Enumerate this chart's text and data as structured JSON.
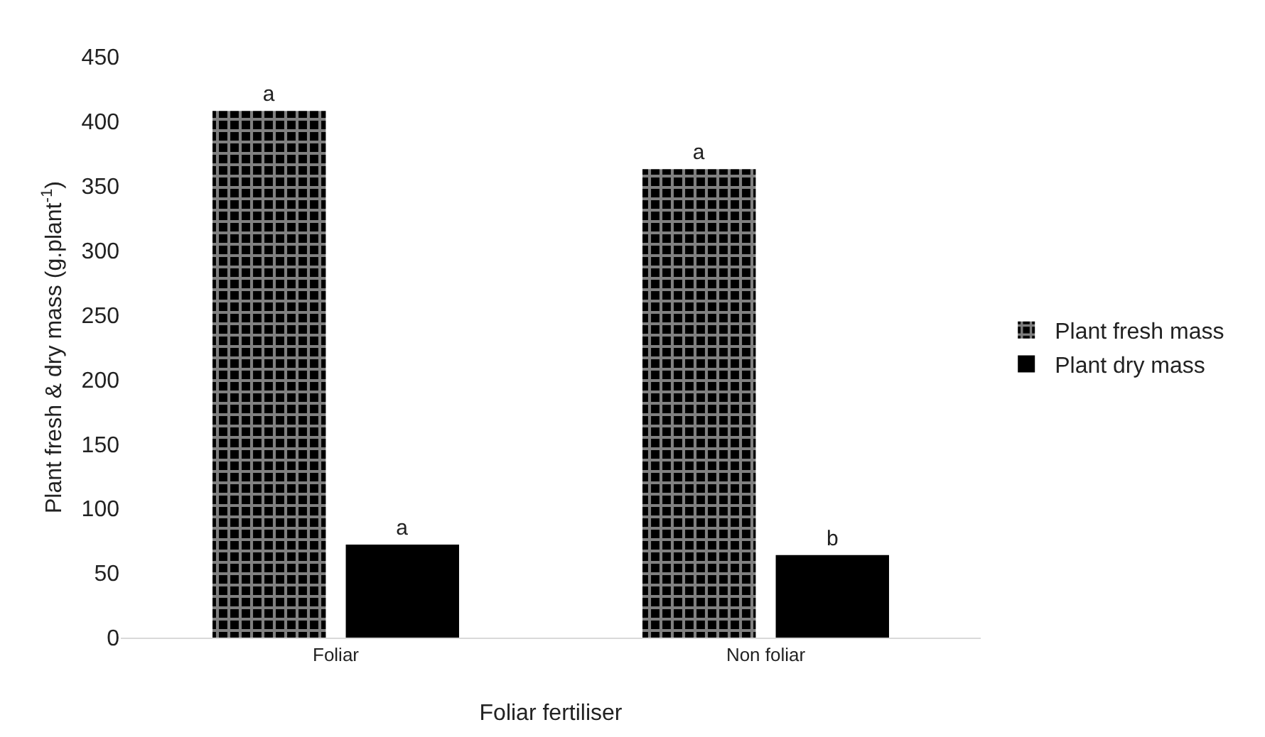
{
  "chart_data": {
    "type": "bar",
    "xlabel": "Foliar fertiliser",
    "ylabel": "Plant fresh & dry mass (g.plant$^{-1}$)",
    "categories": [
      "Foliar",
      "Non foliar"
    ],
    "series": [
      {
        "name": "Plant fresh mass",
        "color": "#000000",
        "values": [
          408,
          363
        ],
        "value_labels": [
          "a",
          "a"
        ]
      },
      {
        "name": "Plant dry mass",
        "color": "#000000",
        "values": [
          72,
          64
        ],
        "value_labels": [
          "a",
          "b"
        ]
      }
    ],
    "ylim": [
      0,
      450
    ],
    "yticks": [
      0,
      50,
      100,
      150,
      200,
      250,
      300,
      350,
      400,
      450
    ],
    "grid": false,
    "legend": "right"
  }
}
